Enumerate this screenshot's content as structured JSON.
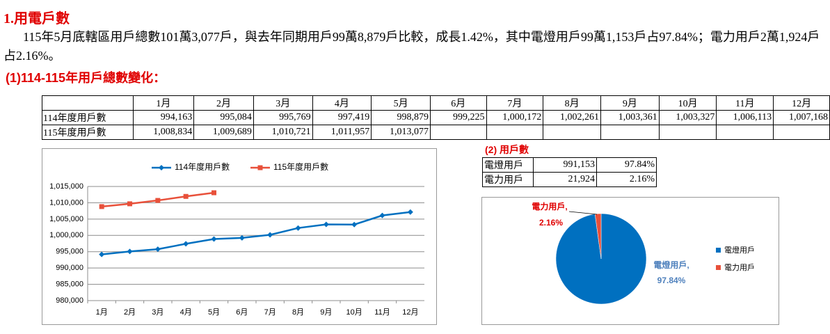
{
  "header": {
    "title": "1.用電戶數",
    "paragraph": "115年5月底轄區用戶總數101萬3,077戶，與去年同期用戶99萬8,879戶比較，成長1.42%，其中電燈用戶99萬1,153戶占97.84%；電力用戶2萬1,924戶占2.16%。",
    "subtitle": "(1)114-115年用戶總數變化："
  },
  "table": {
    "columns": [
      "1月",
      "2月",
      "3月",
      "4月",
      "5月",
      "6月",
      "7月",
      "8月",
      "9月",
      "10月",
      "11月",
      "12月"
    ],
    "rows": [
      {
        "label": "114年度用戶數",
        "cells": [
          "994,163",
          "995,084",
          "995,769",
          "997,419",
          "998,879",
          "999,225",
          "1,000,172",
          "1,002,261",
          "1,003,361",
          "1,003,327",
          "1,006,113",
          "1,007,168"
        ]
      },
      {
        "label": "115年度用戶數",
        "cells": [
          "1,008,834",
          "1,009,689",
          "1,010,721",
          "1,011,957",
          "1,013,077"
        ]
      }
    ]
  },
  "breakdown": {
    "title": "(2) 用戶數",
    "rows": [
      [
        "電燈用戶",
        "991,153",
        "97.84%"
      ],
      [
        "電力用戶",
        "21,924",
        "2.16%"
      ]
    ]
  },
  "chart_data": [
    {
      "type": "line",
      "categories": [
        "1月",
        "2月",
        "3月",
        "4月",
        "5月",
        "6月",
        "7月",
        "8月",
        "9月",
        "10月",
        "11月",
        "12月"
      ],
      "series": [
        {
          "name": "114年度用戶數",
          "color": "#0070c0",
          "values": [
            994163,
            995084,
            995769,
            997419,
            998879,
            999225,
            1000172,
            1002261,
            1003361,
            1003327,
            1006113,
            1007168
          ]
        },
        {
          "name": "115年度用戶數",
          "color": "#e8503a",
          "values": [
            1008834,
            1009689,
            1010721,
            1011957,
            1013077,
            null,
            null,
            null,
            null,
            null,
            null,
            null
          ]
        }
      ],
      "ylim": [
        980000,
        1015000
      ],
      "yticks": [
        {
          "value": 980000,
          "label": "980,000"
        },
        {
          "value": 985000,
          "label": "985,000"
        },
        {
          "value": 990000,
          "label": "990,000"
        },
        {
          "value": 995000,
          "label": "995,000"
        },
        {
          "value": 1000000,
          "label": "1,000,000"
        },
        {
          "value": 1005000,
          "label": "1,005,000"
        },
        {
          "value": 1010000,
          "label": "1,010,000"
        },
        {
          "value": 1015000,
          "label": "1,015,000"
        }
      ],
      "grid": true,
      "legend": "top"
    },
    {
      "type": "pie",
      "categories": [
        "電燈用戶",
        "電力用戶"
      ],
      "values": [
        97.84,
        2.16
      ],
      "value_labels": [
        "97.84%",
        "2.16%"
      ],
      "data_label_names": [
        "電燈用戶,",
        "電力用戶,"
      ],
      "colors": [
        "#0070c0",
        "#e8503a"
      ],
      "label_colors": [
        "#4f81bd",
        "#e00000"
      ],
      "legend": "right"
    }
  ]
}
